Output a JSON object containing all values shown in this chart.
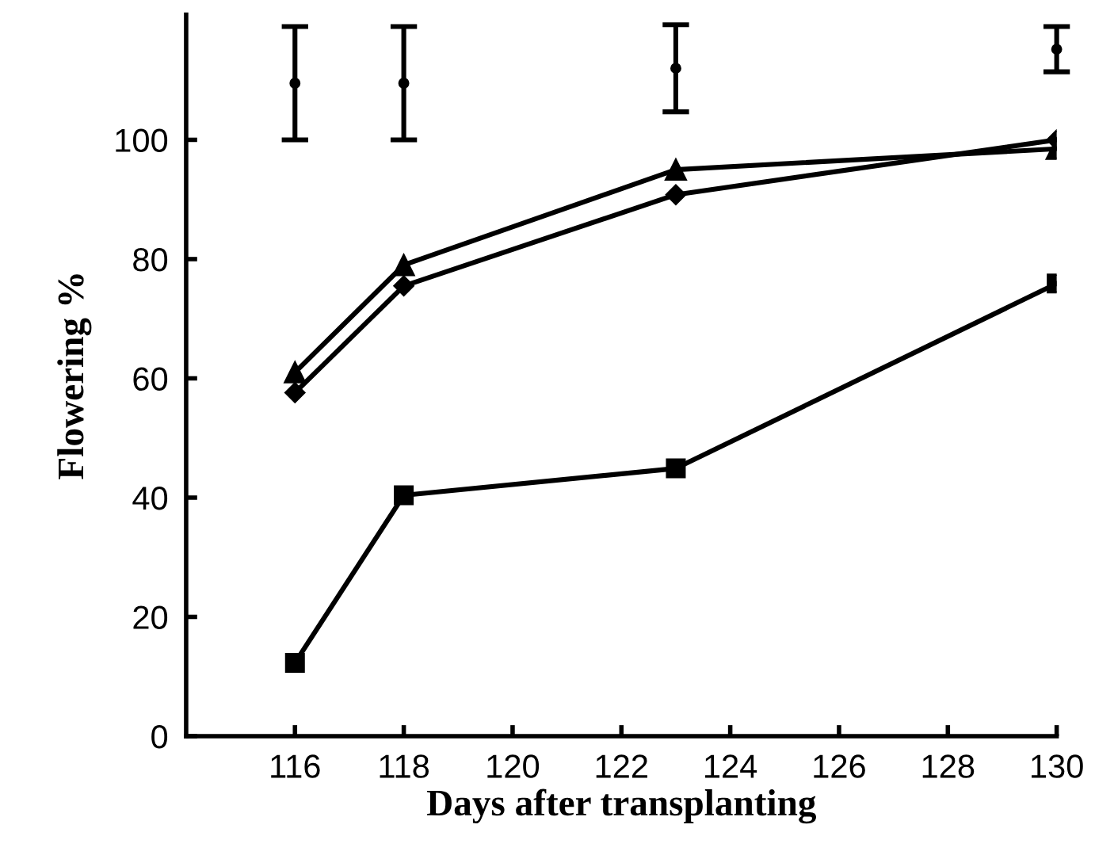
{
  "chart_data": {
    "type": "line",
    "xlabel": "Days after transplanting",
    "ylabel": "Flowering %",
    "x": [
      116,
      118,
      123,
      130
    ],
    "series": [
      {
        "color": "#000000",
        "marker": "triangle",
        "values": [
          61,
          79,
          95,
          98.5
        ]
      },
      {
        "color": "#000000",
        "marker": "diamond",
        "values": [
          57.6,
          75.5,
          90.8,
          100
        ]
      },
      {
        "color": "#000000",
        "marker": "square",
        "values": [
          12.3,
          40.4,
          44.9,
          75.9
        ]
      },
      {
        "type": "scatter",
        "color": "#000000",
        "marker": "circle",
        "values": [
          109.5,
          109.5,
          112,
          115.2
        ],
        "errors": [
          9.5,
          9.5,
          7.3,
          3.8
        ]
      }
    ],
    "xlim": [
      114,
      130
    ],
    "xticks": [
      116,
      118,
      120,
      122,
      124,
      126,
      128,
      130
    ],
    "ylim": [
      0,
      121
    ],
    "yticks": [
      0,
      20,
      40,
      60,
      80,
      100
    ],
    "grid": false,
    "legend": false,
    "line_style": "solid"
  }
}
